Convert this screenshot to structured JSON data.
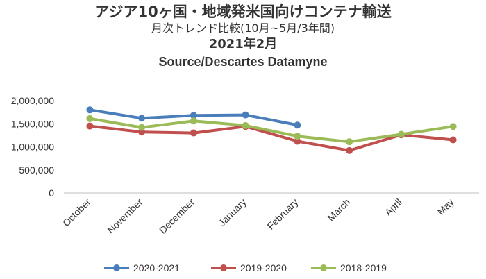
{
  "chart_data": {
    "type": "line",
    "title": "アジア10ヶ国・地域発米国向けコンテナ輸送",
    "subtitle": "月次トレンド比較(10月~5月/3年間)",
    "date_label": "2021年2月",
    "source": "Source/Descartes Datamyne",
    "categories": [
      "October",
      "November",
      "December",
      "January",
      "February",
      "March",
      "April",
      "May"
    ],
    "y_ticks": [
      "0",
      "500,000",
      "1,000,000",
      "1,500,000",
      "2,000,000"
    ],
    "y_tick_values": [
      0,
      500000,
      1000000,
      1500000,
      2000000
    ],
    "ylim": [
      0,
      2000000
    ],
    "legend_position": "bottom",
    "grid": false,
    "series": [
      {
        "name": "2020-2021",
        "color": "#4a7ebb",
        "values": [
          1800000,
          1620000,
          1680000,
          1690000,
          1470000,
          null,
          null,
          null
        ]
      },
      {
        "name": "2019-2020",
        "color": "#c0504d",
        "values": [
          1450000,
          1320000,
          1300000,
          1440000,
          1120000,
          920000,
          1260000,
          1150000
        ]
      },
      {
        "name": "2018-2019",
        "color": "#9bbb59",
        "values": [
          1610000,
          1420000,
          1560000,
          1460000,
          1230000,
          1110000,
          1270000,
          1440000
        ]
      }
    ]
  }
}
